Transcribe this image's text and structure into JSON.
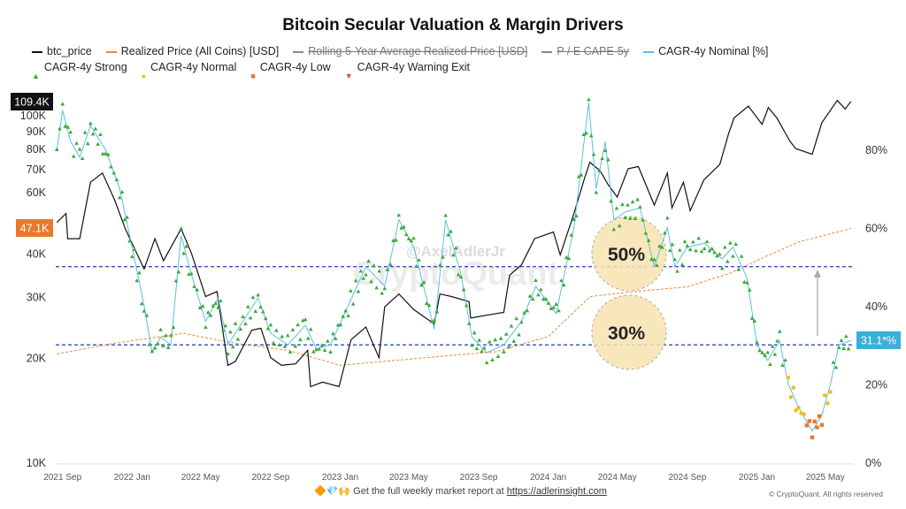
{
  "chart_data": {
    "type": "line",
    "title": "Bitcoin Secular Valuation & Margin Drivers",
    "legend": [
      {
        "name": "btc_price",
        "color": "#111111",
        "style": "solid",
        "active": true
      },
      {
        "name": "Realized Price (All Coins) [USD]",
        "color": "#e8893a",
        "style": "dashed",
        "active": true
      },
      {
        "name": "Rolling 5-Year Average Realized Price [USD]",
        "color": "#888888",
        "style": "solid",
        "active": false
      },
      {
        "name": "P / E CAPE-5y",
        "color": "#888888",
        "style": "solid",
        "active": false
      },
      {
        "name": "CAGR-4y Nominal [%]",
        "color": "#5bc0de",
        "style": "solid",
        "active": true
      },
      {
        "name": "CAGR-4y Strong",
        "color": "#3aa935",
        "style": "triangle-up",
        "active": true
      },
      {
        "name": "CAGR-4y Normal",
        "color": "#e8c12a",
        "style": "circle",
        "active": true
      },
      {
        "name": "CAGR-4y Low",
        "color": "#e8792a",
        "style": "square",
        "active": true
      },
      {
        "name": "CAGR-4y Warning Exit",
        "color": "#d9473a",
        "style": "triangle-down",
        "active": true
      }
    ],
    "legend_placement": "top",
    "y_left": {
      "scale": "log",
      "range": [
        10000,
        125000
      ],
      "ticks": [
        "10K",
        "20K",
        "30K",
        "40K",
        "60K",
        "70K",
        "80K",
        "90K",
        "100K"
      ],
      "tick_values": [
        10000,
        20000,
        30000,
        40000,
        60000,
        70000,
        80000,
        90000,
        100000
      ]
    },
    "y_right": {
      "scale": "linear",
      "range": [
        0,
        100
      ],
      "ticks": [
        "0%",
        "20%",
        "40%",
        "60%",
        "80%"
      ],
      "tick_values": [
        0,
        20,
        40,
        60,
        80
      ]
    },
    "x_ticks": [
      "2021 Sep",
      "2022 Jan",
      "2022 May",
      "2022 Sep",
      "2023 Jan",
      "2023 May",
      "2023 Sep",
      "2024 Jan",
      "2024 May",
      "2024 Sep",
      "2025 Jan",
      "2025 May"
    ],
    "x_tick_dates": [
      "2021-09-01",
      "2022-01-01",
      "2022-05-01",
      "2022-09-01",
      "2023-01-01",
      "2023-05-01",
      "2023-09-01",
      "2024-01-01",
      "2024-05-01",
      "2024-09-01",
      "2025-01-01",
      "2025-05-01"
    ],
    "x_range": [
      "2021-08-20",
      "2025-06-20"
    ],
    "grid": false,
    "btc_price": [
      [
        "2021-08-22",
        49000
      ],
      [
        "2021-09-07",
        52000
      ],
      [
        "2021-09-10",
        44000
      ],
      [
        "2021-10-01",
        44000
      ],
      [
        "2021-10-20",
        64000
      ],
      [
        "2021-11-10",
        68000
      ],
      [
        "2021-12-01",
        57000
      ],
      [
        "2021-12-20",
        47000
      ],
      [
        "2022-01-22",
        36000
      ],
      [
        "2022-02-10",
        44000
      ],
      [
        "2022-02-25",
        38000
      ],
      [
        "2022-03-28",
        47000
      ],
      [
        "2022-04-15",
        40000
      ],
      [
        "2022-05-10",
        30000
      ],
      [
        "2022-05-30",
        31000
      ],
      [
        "2022-06-18",
        19000
      ],
      [
        "2022-07-01",
        19500
      ],
      [
        "2022-07-30",
        24000
      ],
      [
        "2022-08-15",
        24300
      ],
      [
        "2022-09-01",
        20000
      ],
      [
        "2022-09-20",
        19000
      ],
      [
        "2022-10-15",
        19200
      ],
      [
        "2022-11-05",
        21000
      ],
      [
        "2022-11-10",
        16500
      ],
      [
        "2022-12-01",
        17000
      ],
      [
        "2022-12-30",
        16500
      ],
      [
        "2023-01-20",
        22500
      ],
      [
        "2023-02-15",
        24500
      ],
      [
        "2023-03-10",
        20000
      ],
      [
        "2023-03-20",
        28000
      ],
      [
        "2023-04-14",
        30500
      ],
      [
        "2023-05-10",
        27500
      ],
      [
        "2023-06-15",
        25000
      ],
      [
        "2023-06-25",
        30500
      ],
      [
        "2023-07-15",
        30000
      ],
      [
        "2023-08-15",
        29000
      ],
      [
        "2023-08-18",
        26000
      ],
      [
        "2023-09-15",
        26500
      ],
      [
        "2023-10-15",
        27000
      ],
      [
        "2023-10-25",
        34500
      ],
      [
        "2023-11-15",
        37000
      ],
      [
        "2023-12-08",
        44000
      ],
      [
        "2024-01-10",
        46000
      ],
      [
        "2024-01-22",
        39500
      ],
      [
        "2024-02-15",
        52000
      ],
      [
        "2024-03-05",
        66000
      ],
      [
        "2024-03-14",
        73000
      ],
      [
        "2024-04-01",
        69000
      ],
      [
        "2024-04-15",
        63000
      ],
      [
        "2024-05-01",
        58000
      ],
      [
        "2024-05-20",
        70000
      ],
      [
        "2024-06-07",
        71000
      ],
      [
        "2024-07-05",
        55000
      ],
      [
        "2024-07-28",
        68000
      ],
      [
        "2024-08-05",
        54000
      ],
      [
        "2024-08-25",
        64000
      ],
      [
        "2024-09-06",
        53000
      ],
      [
        "2024-09-30",
        65000
      ],
      [
        "2024-10-28",
        72000
      ],
      [
        "2024-11-12",
        88000
      ],
      [
        "2024-11-22",
        98000
      ],
      [
        "2024-12-17",
        106000
      ],
      [
        "2025-01-10",
        94000
      ],
      [
        "2025-01-21",
        105000
      ],
      [
        "2025-02-05",
        98000
      ],
      [
        "2025-02-28",
        84000
      ],
      [
        "2025-03-10",
        80000
      ],
      [
        "2025-04-08",
        77000
      ],
      [
        "2025-04-25",
        95000
      ],
      [
        "2025-05-22",
        110000
      ],
      [
        "2025-06-05",
        104000
      ],
      [
        "2025-06-15",
        109400
      ]
    ],
    "realized_price": [
      [
        "2021-08-22",
        20500
      ],
      [
        "2021-12-01",
        22000
      ],
      [
        "2022-04-01",
        23500
      ],
      [
        "2022-07-01",
        22000
      ],
      [
        "2022-10-01",
        21000
      ],
      [
        "2023-01-01",
        19000
      ],
      [
        "2023-06-01",
        20000
      ],
      [
        "2023-10-01",
        20800
      ],
      [
        "2024-01-01",
        23000
      ],
      [
        "2024-03-15",
        30000
      ],
      [
        "2024-06-01",
        31000
      ],
      [
        "2024-09-01",
        32000
      ],
      [
        "2024-11-15",
        35000
      ],
      [
        "2025-01-15",
        39000
      ],
      [
        "2025-03-15",
        43000
      ],
      [
        "2025-06-15",
        47100
      ]
    ],
    "cagr_4y": [
      [
        "2021-08-22",
        80
      ],
      [
        "2021-09-01",
        90
      ],
      [
        "2021-09-15",
        82
      ],
      [
        "2021-10-01",
        78
      ],
      [
        "2021-10-20",
        86
      ],
      [
        "2021-11-15",
        80
      ],
      [
        "2021-12-10",
        70
      ],
      [
        "2022-01-01",
        55
      ],
      [
        "2022-01-22",
        40
      ],
      [
        "2022-02-05",
        28
      ],
      [
        "2022-02-20",
        32
      ],
      [
        "2022-03-10",
        30
      ],
      [
        "2022-03-28",
        58
      ],
      [
        "2022-04-15",
        48
      ],
      [
        "2022-05-10",
        36
      ],
      [
        "2022-06-01",
        42
      ],
      [
        "2022-06-18",
        30
      ],
      [
        "2022-07-10",
        35
      ],
      [
        "2022-08-10",
        42
      ],
      [
        "2022-09-01",
        33
      ],
      [
        "2022-10-01",
        30
      ],
      [
        "2022-11-01",
        35
      ],
      [
        "2022-11-20",
        29
      ],
      [
        "2022-12-15",
        30
      ],
      [
        "2023-01-15",
        40
      ],
      [
        "2023-02-15",
        50
      ],
      [
        "2023-03-20",
        45
      ],
      [
        "2023-04-14",
        62
      ],
      [
        "2023-05-10",
        55
      ],
      [
        "2023-06-15",
        34
      ],
      [
        "2023-07-05",
        62
      ],
      [
        "2023-08-01",
        48
      ],
      [
        "2023-08-20",
        32
      ],
      [
        "2023-09-15",
        28
      ],
      [
        "2023-10-15",
        30
      ],
      [
        "2023-11-15",
        36
      ],
      [
        "2023-12-10",
        45
      ],
      [
        "2024-01-15",
        38
      ],
      [
        "2024-02-15",
        60
      ],
      [
        "2024-03-12",
        92
      ],
      [
        "2024-03-25",
        70
      ],
      [
        "2024-04-10",
        82
      ],
      [
        "2024-04-25",
        62
      ],
      [
        "2024-05-15",
        64
      ],
      [
        "2024-06-10",
        65
      ],
      [
        "2024-07-05",
        50
      ],
      [
        "2024-07-28",
        60
      ],
      [
        "2024-08-10",
        50
      ],
      [
        "2024-09-01",
        55
      ],
      [
        "2024-10-01",
        56
      ],
      [
        "2024-11-01",
        52
      ],
      [
        "2024-11-20",
        55
      ],
      [
        "2024-12-15",
        47
      ],
      [
        "2025-01-01",
        30
      ],
      [
        "2025-01-20",
        26
      ],
      [
        "2025-02-10",
        31
      ],
      [
        "2025-02-25",
        20
      ],
      [
        "2025-03-15",
        14
      ],
      [
        "2025-04-08",
        8
      ],
      [
        "2025-04-25",
        12
      ],
      [
        "2025-05-10",
        20
      ],
      [
        "2025-05-25",
        30
      ],
      [
        "2025-06-15",
        31.1
      ]
    ],
    "reference_lines": [
      {
        "value": 50,
        "label": "50%",
        "color": "#1f3fb5"
      },
      {
        "value": 30,
        "label": "30%",
        "color": "#1f3fb5"
      }
    ],
    "badges": {
      "price_last": "109.4K",
      "realized_last": "47.1K",
      "cagr_last": "31.1*%"
    },
    "watermark": [
      "@AxelAdlerJr",
      "CryptoQuant"
    ]
  },
  "footer": {
    "emoji": "🔶💎🙌",
    "text": "Get the full weekly market report at ",
    "link": "https://adlerinsight.com",
    "copyright": "© CryptoQuant. All rights reserved"
  }
}
